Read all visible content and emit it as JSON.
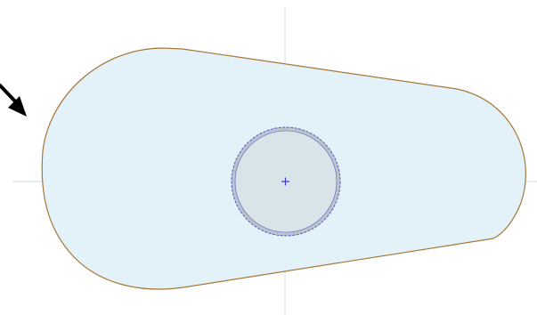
{
  "drawing": {
    "colors": {
      "background": "#ffffff",
      "part_fill": "#e2f2f8",
      "part_outline": "#a7773a",
      "axis_line": "#c6d2df",
      "hole_outer_fill": "#b9c4cb",
      "hole_inner_fill": "#d9e4e8",
      "hole_outline": "#5a5ac8",
      "center_mark": "#3a3ad0",
      "arrow": "#000000"
    },
    "icons": {
      "pointer": "arrow-icon",
      "center": "center-cross-icon"
    }
  }
}
